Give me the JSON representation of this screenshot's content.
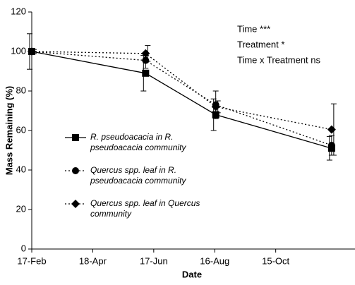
{
  "chart_data": {
    "type": "line",
    "y_label": "Mass Remaining (%)",
    "x_label": "Date",
    "annotations": [
      "Time ***",
      "Treatment *",
      "Time x Treatment ns"
    ],
    "x": [
      0,
      112,
      181,
      295
    ],
    "xlim": [
      0,
      318
    ],
    "xticks": [
      {
        "value": 0,
        "label": "17-Feb"
      },
      {
        "value": 60,
        "label": "18-Apr"
      },
      {
        "value": 120,
        "label": "17-Jun"
      },
      {
        "value": 180,
        "label": "16-Aug"
      },
      {
        "value": 240,
        "label": "15-Oct"
      }
    ],
    "ylim": [
      0,
      120
    ],
    "yticks": [
      0,
      20,
      40,
      60,
      80,
      100,
      120
    ],
    "series": [
      {
        "name": "R. pseudoacacia in R. pseudoacacia community",
        "color": "#000000",
        "marker": "square",
        "dash": "solid",
        "values": [
          100,
          89,
          68,
          51
        ],
        "errors": [
          9,
          9,
          8,
          6
        ]
      },
      {
        "name": "Quercus spp. leaf in R. pseudoacacia community",
        "color": "#000000",
        "marker": "circle",
        "dash": "dotted",
        "values": [
          100,
          95.5,
          73,
          52.5
        ],
        "errors": [
          1,
          4,
          7,
          5
        ]
      },
      {
        "name": "Quercus spp. leaf in Quercus community",
        "color": "#000000",
        "marker": "diamond",
        "dash": "dotted",
        "values": [
          100,
          99,
          72,
          60.5
        ],
        "errors": [
          1,
          4,
          3,
          13
        ]
      }
    ]
  }
}
